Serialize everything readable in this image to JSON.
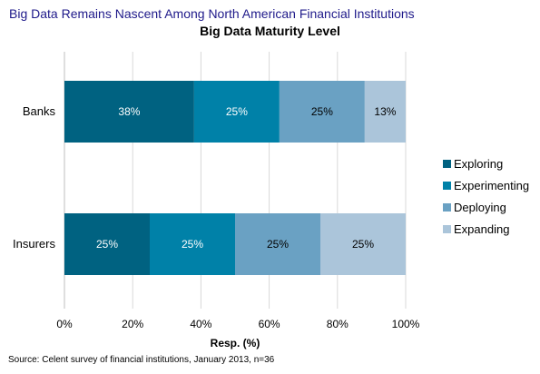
{
  "header": {
    "title": "Big Data Remains Nascent Among North American Financial Institutions"
  },
  "footer": {
    "source": "Source:  Celent survey of financial institutions, January 2013, n=36"
  },
  "chart_data": {
    "type": "bar",
    "orientation": "horizontal",
    "stacked": true,
    "title": "Big Data Maturity Level",
    "xlabel": "Resp. (%)",
    "ylabel": "",
    "xlim": [
      0,
      100
    ],
    "x_ticks": [
      "0%",
      "20%",
      "40%",
      "60%",
      "80%",
      "100%"
    ],
    "grid": true,
    "legend_position": "right",
    "categories": [
      "Banks",
      "Insurers"
    ],
    "series": [
      {
        "name": "Exploring",
        "values": [
          38,
          25
        ],
        "labels": [
          "38%",
          "25%"
        ],
        "color": "#006281",
        "label_color": "#ffffff"
      },
      {
        "name": "Experimenting",
        "values": [
          25,
          25
        ],
        "labels": [
          "25%",
          "25%"
        ],
        "color": "#0081a8",
        "label_color": "#ffffff"
      },
      {
        "name": "Deploying",
        "values": [
          25,
          25
        ],
        "labels": [
          "25%",
          "25%"
        ],
        "color": "#6aa1c3",
        "label_color": "#000000"
      },
      {
        "name": "Expanding",
        "values": [
          13,
          25
        ],
        "labels": [
          "13%",
          "25%"
        ],
        "color": "#abc5da",
        "label_color": "#000000"
      }
    ]
  }
}
